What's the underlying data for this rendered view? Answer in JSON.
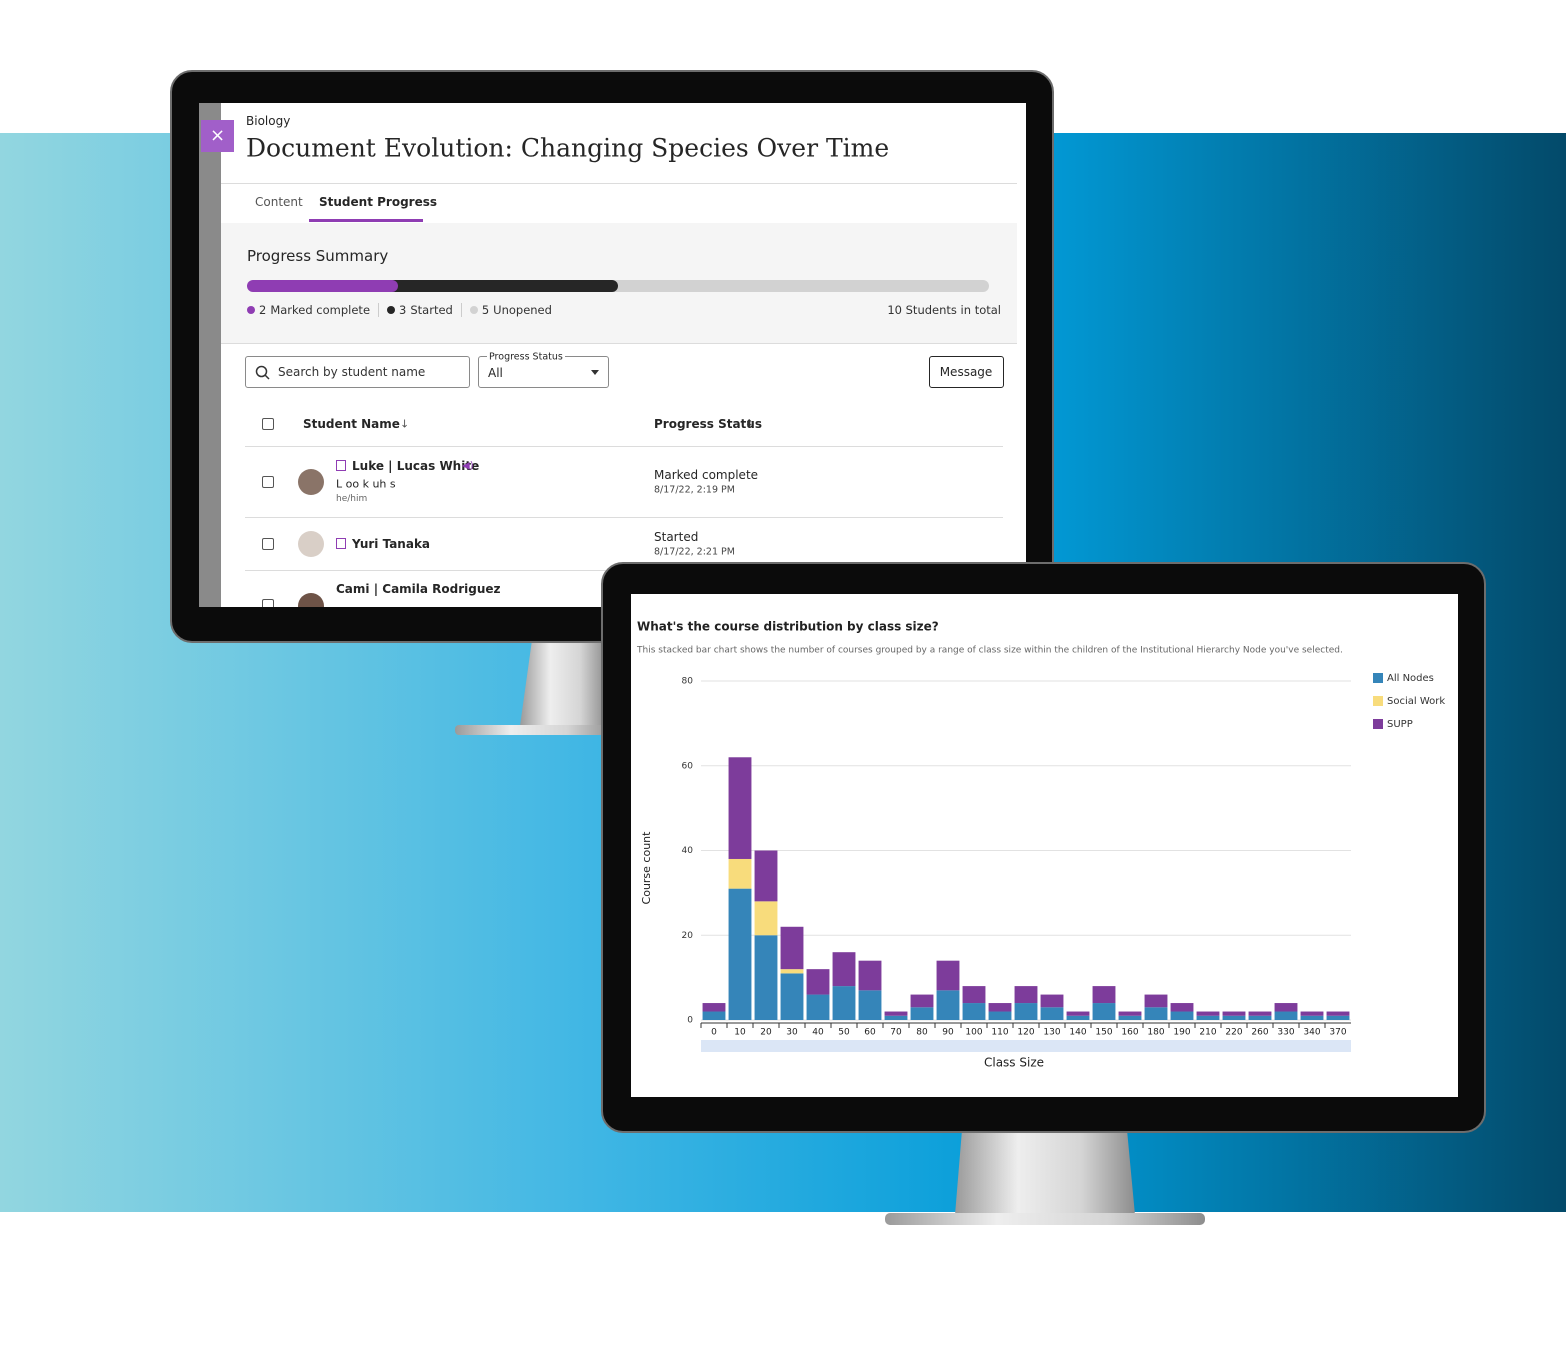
{
  "ui": {
    "course": "Biology",
    "title": "Document Evolution: Changing Species Over Time",
    "tabs": [
      "Content",
      "Student Progress"
    ],
    "summary": {
      "heading": "Progress Summary",
      "segments": [
        {
          "count": 2,
          "label": "Marked complete",
          "color": "#8f3db3"
        },
        {
          "count": 3,
          "label": "Started",
          "color": "#262626"
        },
        {
          "count": 5,
          "label": "Unopened",
          "color": "#d2d2d2"
        }
      ],
      "total": "10 Students in total"
    },
    "search_placeholder": "Search by student name",
    "filter": {
      "label": "Progress Status",
      "value": "All"
    },
    "button": "Message",
    "columns": [
      "Student Name",
      "Progress Status"
    ],
    "rows": [
      {
        "name": "Luke | Lucas White",
        "pronunciation": "L oo k uh s",
        "pronouns": "he/him",
        "status": "Marked complete",
        "date": "8/17/22, 2:19 PM"
      },
      {
        "name": "Yuri Tanaka",
        "status": "Started",
        "date": "8/17/22, 2:21 PM"
      },
      {
        "name": "Cami | Camila Rodriguez"
      }
    ]
  },
  "chart_data": {
    "type": "bar",
    "stacked": true,
    "title": "What's the course distribution by class size?",
    "subtitle": "This stacked bar chart shows the number of courses grouped by a range of class size within the children of the Institutional Hierarchy Node you've selected.",
    "x_label": "Class Size",
    "y_label": "Course count",
    "categories": [
      "0",
      "10",
      "20",
      "30",
      "40",
      "50",
      "60",
      "70",
      "80",
      "90",
      "100",
      "110",
      "120",
      "130",
      "140",
      "150",
      "160",
      "180",
      "190",
      "210",
      "220",
      "260",
      "330",
      "340",
      "370"
    ],
    "series": [
      {
        "name": "All Nodes",
        "color": "#3585b9",
        "values": [
          2,
          31,
          20,
          11,
          6,
          8,
          7,
          1,
          3,
          7,
          4,
          2,
          4,
          3,
          1,
          4,
          1,
          3,
          2,
          1,
          1,
          1,
          2,
          1,
          1
        ]
      },
      {
        "name": "Social Work",
        "color": "#f8dc7c",
        "values": [
          0,
          7,
          8,
          1,
          0,
          0,
          0,
          0,
          0,
          0,
          0,
          0,
          0,
          0,
          0,
          0,
          0,
          0,
          0,
          0,
          0,
          0,
          0,
          0,
          0
        ]
      },
      {
        "name": "SUPP",
        "color": "#7d3c9b",
        "values": [
          2,
          24,
          12,
          10,
          6,
          8,
          7,
          1,
          3,
          7,
          4,
          2,
          4,
          3,
          1,
          4,
          1,
          3,
          2,
          1,
          1,
          1,
          2,
          1,
          1
        ]
      }
    ],
    "ylim": [
      0,
      80
    ],
    "yticks": [
      0,
      20,
      40,
      60,
      80
    ],
    "grid": true,
    "legend": "right"
  }
}
